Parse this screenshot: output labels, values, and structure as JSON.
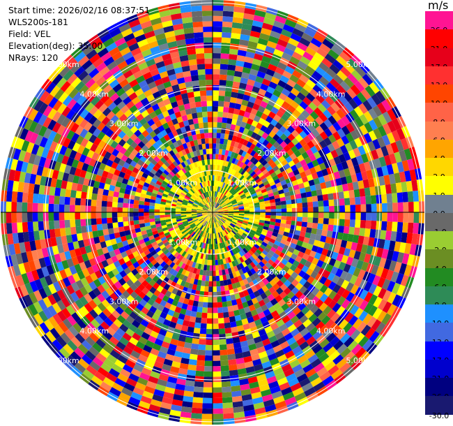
{
  "info": {
    "start_time": "Start time: 2026/02/16 08:37:51",
    "instrument": "WLS200s-181",
    "field": "Field: VEL",
    "elevation": "Elevation(deg): 35.00",
    "nrays": "NRays: 120"
  },
  "plot": {
    "nrays": 120,
    "range_labels": [
      "1.00km",
      "2.00km",
      "3.00km",
      "4.00km",
      "5.00km"
    ]
  },
  "colorbar": {
    "unit": "m/s",
    "ticks": [
      "26.0",
      "21.0",
      "17.0",
      "13.0",
      "10.0",
      "8.0",
      "6.0",
      "4.0",
      "2.0",
      "1.0",
      "0.0",
      "-1.0",
      "-2.0",
      "-4.0",
      "-6.0",
      "-8.0",
      "-10.0",
      "-13.0",
      "-17.0",
      "-21.0",
      "-26.0",
      "-30.0"
    ],
    "colors": [
      "#ff1493",
      "#ff0000",
      "#e6001a",
      "#ff3030",
      "#ff4500",
      "#ff6347",
      "#ff7f50",
      "#ffa500",
      "#ffd700",
      "#ffff00",
      "#708090",
      "#696969",
      "#9acd32",
      "#6b8e23",
      "#228b22",
      "#2e8b57",
      "#1e90ff",
      "#4169e1",
      "#0000ff",
      "#0000cd",
      "#000080",
      "#191970"
    ]
  }
}
